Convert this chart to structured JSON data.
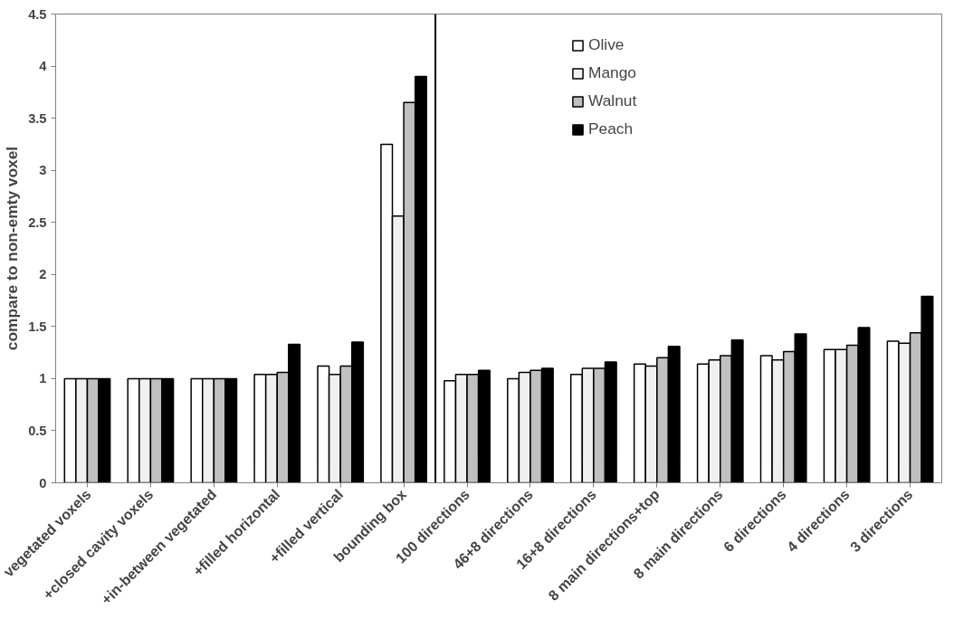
{
  "chart_data": {
    "type": "bar",
    "ylabel": "compare to non-emty voxel",
    "categories": [
      "vegetated voxels",
      "+closed cavity voxels",
      "+in-between vegetated",
      "+filled horizontal",
      "+filled vertical",
      "bounding box",
      "100 directions",
      "46+8 directions",
      "16+8 directions",
      "8 main directions+top",
      "8 main directions",
      "6 directions",
      "4 directions",
      "3 directions"
    ],
    "series": [
      {
        "name": "Olive",
        "color": "#ffffff",
        "values": [
          1,
          1,
          1,
          1.04,
          1.12,
          3.25,
          0.98,
          1.0,
          1.04,
          1.14,
          1.14,
          1.22,
          1.28,
          1.36
        ]
      },
      {
        "name": "Mango",
        "color": "#f0f0f0",
        "values": [
          1,
          1,
          1,
          1.04,
          1.04,
          2.56,
          1.04,
          1.06,
          1.1,
          1.12,
          1.18,
          1.18,
          1.28,
          1.34
        ]
      },
      {
        "name": "Walnut",
        "color": "#c0c0c0",
        "values": [
          1,
          1,
          1,
          1.06,
          1.12,
          3.65,
          1.04,
          1.08,
          1.1,
          1.2,
          1.22,
          1.26,
          1.32,
          1.44
        ]
      },
      {
        "name": "Peach",
        "color": "#000000",
        "values": [
          1,
          1,
          1,
          1.33,
          1.35,
          3.9,
          1.08,
          1.1,
          1.16,
          1.31,
          1.37,
          1.43,
          1.49,
          1.79
        ]
      }
    ],
    "ylim": [
      0,
      4.5
    ],
    "yticks": [
      0,
      0.5,
      1,
      1.5,
      2,
      2.5,
      3,
      3.5,
      4,
      4.5
    ],
    "grid": false,
    "legend": "top"
  }
}
